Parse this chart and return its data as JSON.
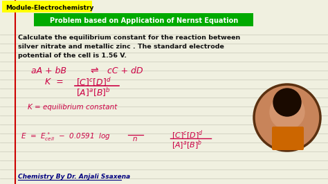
{
  "bg_color": "#f0f0e0",
  "line_color": "#c8c8b8",
  "red_line_color": "#cc0000",
  "module_text": "Module-Electrochemistry",
  "module_bg": "#ffff00",
  "module_text_color": "#000000",
  "title_text": "Problem based on Application of Nernst Equation",
  "title_bg": "#00aa00",
  "title_text_color": "#ffffff",
  "problem_text_line1": "Calculate the equilibrium constant for the reaction between",
  "problem_text_line2": "silver nitrate and metallic zinc . The standard electrode",
  "problem_text_line3": "potential of the cell is 1.56 V.",
  "footer": "Chemistry By Dr. Anjali Ssaxena",
  "handwriting_color": "#cc0044",
  "body_text_color": "#111111"
}
